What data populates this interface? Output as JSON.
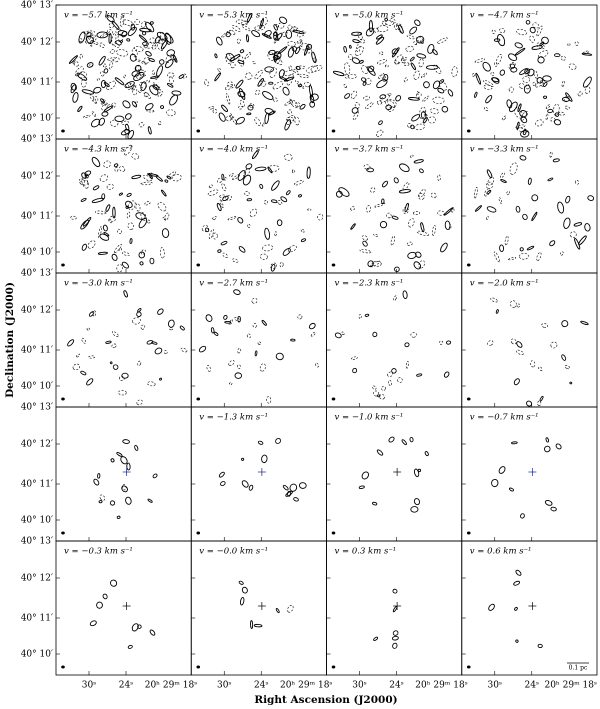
{
  "panels": [
    {
      "label": "v = −5.7 km s⁻¹"
    },
    {
      "label": "v = −5.3 km s⁻¹"
    },
    {
      "label": "v = −5.0 km s⁻¹"
    },
    {
      "label": "v = −4.7 km s⁻¹"
    },
    {
      "label": "v = −4.3 km s⁻¹"
    },
    {
      "label": "v = −4.0 km s⁻¹"
    },
    {
      "label": "v = −3.7 km s⁻¹"
    },
    {
      "label": "v = −3.3 km s⁻¹"
    },
    {
      "label": "v = −3.0 km s⁻¹"
    },
    {
      "label": "v = −2.7 km s⁻¹"
    },
    {
      "label": "v = −2.3 km s⁻¹"
    },
    {
      "label": "v = −2.0 km s⁻¹"
    },
    {
      "label": null
    },
    {
      "label": "v = −1.3 km s⁻¹"
    },
    {
      "label": "v = −1.0 km s⁻¹"
    },
    {
      "label": "v = −0.7 km s⁻¹"
    },
    {
      "label": "v = −0.3 km s⁻¹"
    },
    {
      "label": "v = −0.0 km s⁻¹"
    },
    {
      "label": "v = 0.3 km s⁻¹"
    },
    {
      "label": "v = 0.6 km s⁻¹"
    }
  ],
  "y_ticks": [
    "40° 13′",
    "40° 12′",
    "40° 11′",
    "40° 10′"
  ],
  "x_ticks": [
    "30ˢ",
    "24ˢ",
    "20ʰ 29ᵐ 18ˢ"
  ],
  "x_axis_label": "Right Ascension (J2000)",
  "y_axis_label": "Declination (J2000)",
  "scale_bar": "0.1 pc"
}
